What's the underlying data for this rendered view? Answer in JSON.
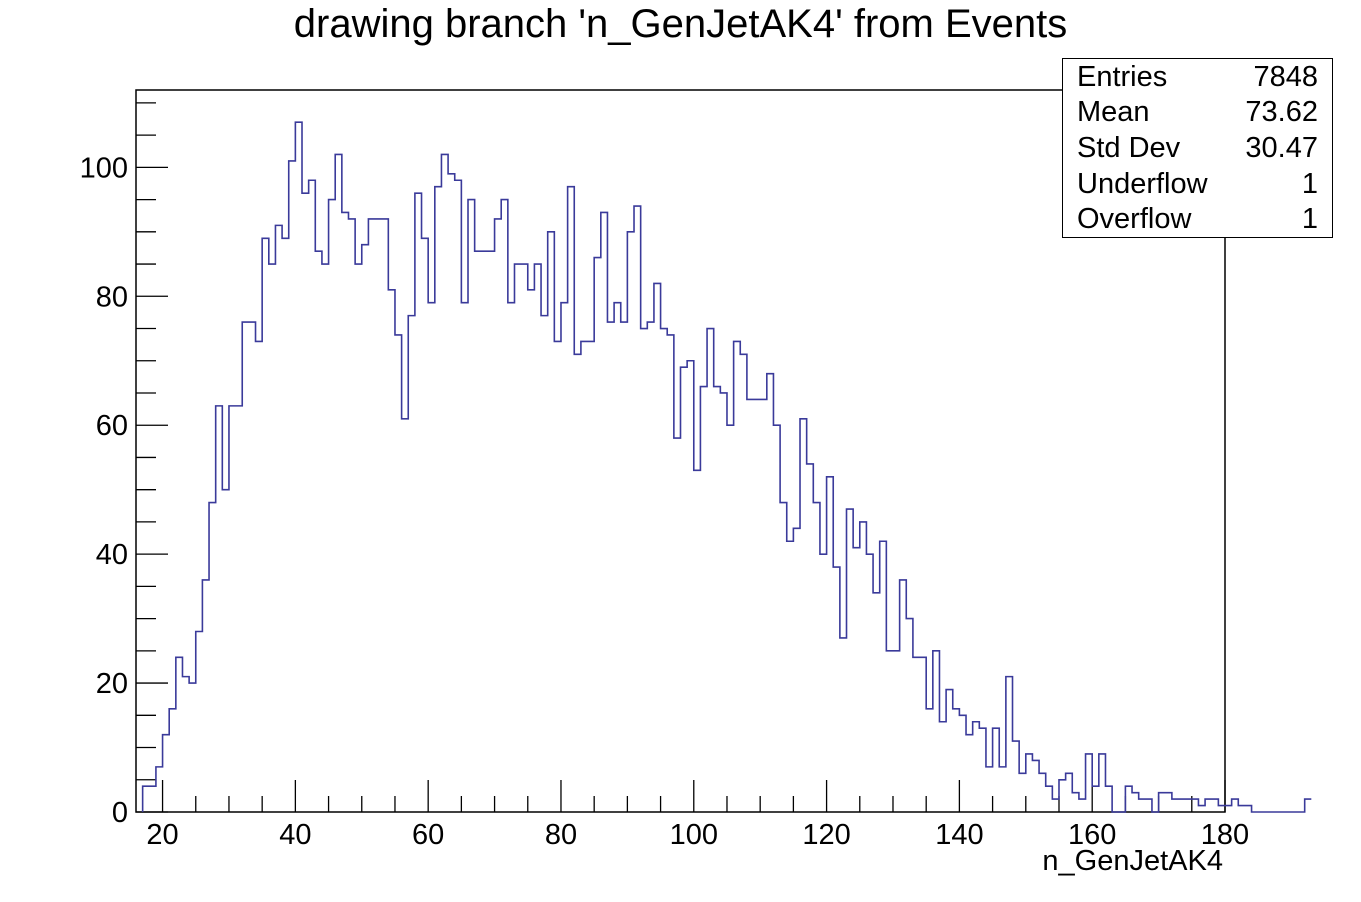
{
  "title": "drawing branch 'n_GenJetAK4' from Events",
  "stats": [
    {
      "label": "Entries",
      "value": "7848"
    },
    {
      "label": "Mean",
      "value": "73.62"
    },
    {
      "label": "Std Dev",
      "value": "30.47"
    },
    {
      "label": "Underflow",
      "value": "1"
    },
    {
      "label": "Overflow",
      "value": "1"
    }
  ],
  "colors": {
    "line": "#3a3a9a",
    "axis": "#000000"
  },
  "chart_data": {
    "type": "histogram",
    "title": "drawing branch 'n_GenJetAK4' from Events",
    "xlabel": "n_GenJetAK4",
    "ylabel": "",
    "xlim": [
      16,
      180
    ],
    "ylim": [
      0,
      112
    ],
    "bin_width": 1,
    "bin_start": 17,
    "x_ticks": [
      20,
      40,
      60,
      80,
      100,
      120,
      140,
      160,
      180
    ],
    "y_ticks": [
      0,
      20,
      40,
      60,
      80,
      100
    ],
    "values": [
      4,
      4,
      7,
      12,
      16,
      24,
      21,
      20,
      28,
      36,
      48,
      63,
      50,
      63,
      63,
      76,
      76,
      73,
      89,
      85,
      91,
      89,
      101,
      107,
      96,
      98,
      87,
      85,
      95,
      102,
      93,
      92,
      85,
      88,
      92,
      92,
      92,
      81,
      74,
      61,
      77,
      96,
      89,
      79,
      97,
      102,
      99,
      98,
      79,
      95,
      87,
      87,
      87,
      92,
      95,
      79,
      85,
      85,
      81,
      85,
      77,
      90,
      73,
      79,
      97,
      71,
      73,
      73,
      86,
      93,
      76,
      79,
      76,
      90,
      94,
      75,
      76,
      82,
      75,
      74,
      58,
      69,
      70,
      53,
      66,
      75,
      66,
      65,
      60,
      73,
      71,
      64,
      64,
      64,
      68,
      60,
      48,
      42,
      44,
      61,
      54,
      48,
      40,
      52,
      38,
      27,
      47,
      41,
      45,
      40,
      34,
      42,
      25,
      25,
      36,
      30,
      24,
      24,
      16,
      25,
      14,
      19,
      16,
      15,
      12,
      14,
      13,
      7,
      13,
      7,
      21,
      11,
      6,
      9,
      8,
      6,
      4,
      2,
      5,
      6,
      3,
      2,
      9,
      4,
      9,
      4,
      0,
      0,
      4,
      3,
      2,
      2,
      0,
      3,
      3,
      2,
      2,
      2,
      2,
      1,
      2,
      2,
      1,
      1,
      2,
      1,
      1,
      0,
      0,
      0,
      0,
      0,
      0,
      0,
      0,
      2
    ]
  }
}
